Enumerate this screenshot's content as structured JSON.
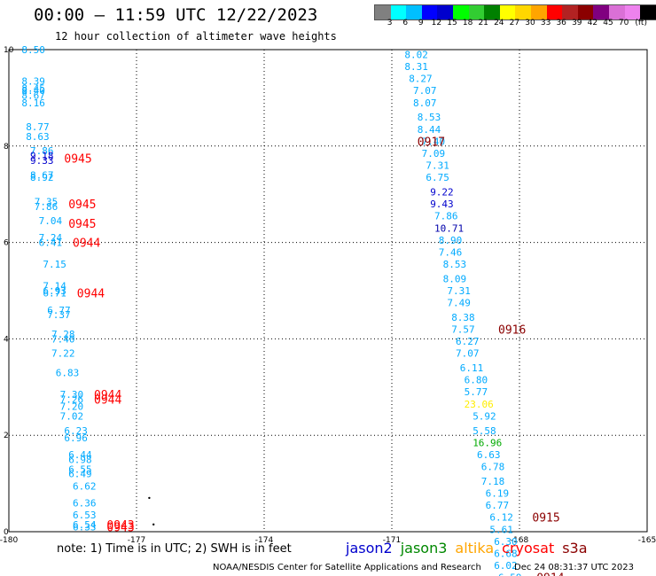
{
  "header": {
    "title": "00:00 – 11:59 UTC 12/22/2023",
    "subtitle": "12 hour collection of altimeter wave heights"
  },
  "colorbar": {
    "swatches": [
      "#808080",
      "#00ffff",
      "#00bfff",
      "#0000ff",
      "#0000cd",
      "#00ff00",
      "#32cd32",
      "#008000",
      "#ffff00",
      "#ffd700",
      "#ffa500",
      "#ff0000",
      "#b22222",
      "#8b0000",
      "#800080",
      "#da70d6",
      "#ee82ee",
      "#000000"
    ],
    "labels": [
      "3",
      "6",
      "9",
      "12",
      "15",
      "18",
      "21",
      "24",
      "27",
      "30",
      "33",
      "36",
      "39",
      "42",
      "45",
      "70",
      "(ft)"
    ]
  },
  "chart_data": {
    "type": "scatter",
    "title": "12 hour collection of altimeter wave heights",
    "xlim": [
      -180,
      -165
    ],
    "ylim": [
      0,
      10
    ],
    "x_ticks": [
      "-180",
      "-177",
      "-174",
      "-171",
      "-168",
      "-165"
    ],
    "x_tick_values": [
      -180,
      -177,
      -174,
      -171,
      -168,
      -165
    ],
    "y_ticks": [
      "0",
      "2",
      "4",
      "6",
      "8",
      "10"
    ],
    "y_tick_values": [
      0,
      2,
      4,
      6,
      8,
      10
    ],
    "grid": true,
    "point_labels": [
      {
        "x": -179.7,
        "y": 10.0,
        "text": "8.50",
        "color": "#00aaff"
      },
      {
        "x": -179.7,
        "y": 9.35,
        "text": "8.39",
        "color": "#00aaff"
      },
      {
        "x": -179.7,
        "y": 9.2,
        "text": "8.45",
        "color": "#00aaff"
      },
      {
        "x": -179.7,
        "y": 9.15,
        "text": "8.40",
        "color": "#00aaff"
      },
      {
        "x": -179.7,
        "y": 9.05,
        "text": "8.67",
        "color": "#00aaff"
      },
      {
        "x": -179.7,
        "y": 8.9,
        "text": "8.16",
        "color": "#00aaff"
      },
      {
        "x": -179.6,
        "y": 8.4,
        "text": "8.77",
        "color": "#00aaff"
      },
      {
        "x": -179.6,
        "y": 8.2,
        "text": "8.63",
        "color": "#00aaff"
      },
      {
        "x": -179.5,
        "y": 7.9,
        "text": "7.86",
        "color": "#00aaff"
      },
      {
        "x": -179.5,
        "y": 7.8,
        "text": "9.18",
        "color": "#0000cd"
      },
      {
        "x": -179.5,
        "y": 7.7,
        "text": "9.33",
        "color": "#0000cd"
      },
      {
        "x": -179.5,
        "y": 7.4,
        "text": "8.67",
        "color": "#00aaff"
      },
      {
        "x": -179.5,
        "y": 7.35,
        "text": "8.92",
        "color": "#00aaff"
      },
      {
        "x": -179.4,
        "y": 6.85,
        "text": "7.35",
        "color": "#00aaff"
      },
      {
        "x": -179.4,
        "y": 6.75,
        "text": "7.86",
        "color": "#00aaff"
      },
      {
        "x": -179.3,
        "y": 6.45,
        "text": "7.04",
        "color": "#00aaff"
      },
      {
        "x": -179.3,
        "y": 6.1,
        "text": "7.24",
        "color": "#00aaff"
      },
      {
        "x": -179.3,
        "y": 6.0,
        "text": "6.41",
        "color": "#00aaff"
      },
      {
        "x": -179.2,
        "y": 5.55,
        "text": "7.15",
        "color": "#00aaff"
      },
      {
        "x": -179.2,
        "y": 5.1,
        "text": "7.14",
        "color": "#00aaff"
      },
      {
        "x": -179.2,
        "y": 5.0,
        "text": "6.93",
        "color": "#00aaff"
      },
      {
        "x": -179.2,
        "y": 4.95,
        "text": "6.71",
        "color": "#00aaff"
      },
      {
        "x": -179.1,
        "y": 4.6,
        "text": "6.77",
        "color": "#00aaff"
      },
      {
        "x": -179.1,
        "y": 4.5,
        "text": "7.37",
        "color": "#00aaff"
      },
      {
        "x": -179.0,
        "y": 4.1,
        "text": "7.28",
        "color": "#00aaff"
      },
      {
        "x": -179.0,
        "y": 4.0,
        "text": "7.40",
        "color": "#00aaff"
      },
      {
        "x": -179.0,
        "y": 3.7,
        "text": "7.22",
        "color": "#00aaff"
      },
      {
        "x": -178.9,
        "y": 3.3,
        "text": "6.83",
        "color": "#00aaff"
      },
      {
        "x": -178.8,
        "y": 2.85,
        "text": "7.30",
        "color": "#00aaff"
      },
      {
        "x": -178.8,
        "y": 2.75,
        "text": "7.26",
        "color": "#00aaff"
      },
      {
        "x": -178.8,
        "y": 2.6,
        "text": "7.20",
        "color": "#00aaff"
      },
      {
        "x": -178.8,
        "y": 2.4,
        "text": "7.02",
        "color": "#00aaff"
      },
      {
        "x": -178.7,
        "y": 2.1,
        "text": "6.23",
        "color": "#00aaff"
      },
      {
        "x": -178.7,
        "y": 1.95,
        "text": "6.96",
        "color": "#00aaff"
      },
      {
        "x": -178.6,
        "y": 1.6,
        "text": "6.44",
        "color": "#00aaff"
      },
      {
        "x": -178.6,
        "y": 1.5,
        "text": "6.98",
        "color": "#00aaff"
      },
      {
        "x": -178.6,
        "y": 1.3,
        "text": "6.55",
        "color": "#00aaff"
      },
      {
        "x": -178.6,
        "y": 1.2,
        "text": "6.49",
        "color": "#00aaff"
      },
      {
        "x": -178.5,
        "y": 0.95,
        "text": "6.62",
        "color": "#00aaff"
      },
      {
        "x": -178.5,
        "y": 0.6,
        "text": "6.36",
        "color": "#00aaff"
      },
      {
        "x": -178.5,
        "y": 0.35,
        "text": "6.53",
        "color": "#00aaff"
      },
      {
        "x": -178.5,
        "y": 0.15,
        "text": "6.54",
        "color": "#00aaff"
      },
      {
        "x": -178.5,
        "y": 0.1,
        "text": "6.33",
        "color": "#00aaff"
      },
      {
        "x": -170.7,
        "y": 9.9,
        "text": "8.02",
        "color": "#00aaff"
      },
      {
        "x": -170.7,
        "y": 9.65,
        "text": "8.31",
        "color": "#00aaff"
      },
      {
        "x": -170.6,
        "y": 9.4,
        "text": "8.27",
        "color": "#00aaff"
      },
      {
        "x": -170.5,
        "y": 9.15,
        "text": "7.07",
        "color": "#00aaff"
      },
      {
        "x": -170.5,
        "y": 8.9,
        "text": "8.07",
        "color": "#00aaff"
      },
      {
        "x": -170.4,
        "y": 8.6,
        "text": "8.53",
        "color": "#00aaff"
      },
      {
        "x": -170.4,
        "y": 8.35,
        "text": "8.44",
        "color": "#00aaff"
      },
      {
        "x": -170.3,
        "y": 8.1,
        "text": "7.40",
        "color": "#00aaff"
      },
      {
        "x": -170.3,
        "y": 7.85,
        "text": "7.09",
        "color": "#00aaff"
      },
      {
        "x": -170.2,
        "y": 7.6,
        "text": "7.31",
        "color": "#00aaff"
      },
      {
        "x": -170.2,
        "y": 7.35,
        "text": "6.75",
        "color": "#00aaff"
      },
      {
        "x": -170.1,
        "y": 7.05,
        "text": "9.22",
        "color": "#0000cd"
      },
      {
        "x": -170.1,
        "y": 6.8,
        "text": "9.43",
        "color": "#0000cd"
      },
      {
        "x": -170.0,
        "y": 6.55,
        "text": "7.86",
        "color": "#00aaff"
      },
      {
        "x": -170.0,
        "y": 6.3,
        "text": "10.71",
        "color": "#0000aa"
      },
      {
        "x": -169.9,
        "y": 6.05,
        "text": "8.90",
        "color": "#00aaff"
      },
      {
        "x": -169.9,
        "y": 5.8,
        "text": "7.46",
        "color": "#00aaff"
      },
      {
        "x": -169.8,
        "y": 5.55,
        "text": "8.53",
        "color": "#00aaff"
      },
      {
        "x": -169.8,
        "y": 5.25,
        "text": "8.09",
        "color": "#00aaff"
      },
      {
        "x": -169.7,
        "y": 5.0,
        "text": "7.31",
        "color": "#00aaff"
      },
      {
        "x": -169.7,
        "y": 4.75,
        "text": "7.49",
        "color": "#00aaff"
      },
      {
        "x": -169.6,
        "y": 4.45,
        "text": "8.38",
        "color": "#00aaff"
      },
      {
        "x": -169.6,
        "y": 4.2,
        "text": "7.57",
        "color": "#00aaff"
      },
      {
        "x": -169.5,
        "y": 3.95,
        "text": "6.27",
        "color": "#00aaff"
      },
      {
        "x": -169.5,
        "y": 3.7,
        "text": "7.07",
        "color": "#00aaff"
      },
      {
        "x": -169.4,
        "y": 3.4,
        "text": "6.11",
        "color": "#00aaff"
      },
      {
        "x": -169.3,
        "y": 3.15,
        "text": "6.80",
        "color": "#00aaff"
      },
      {
        "x": -169.3,
        "y": 2.9,
        "text": "5.77",
        "color": "#00aaff"
      },
      {
        "x": -169.3,
        "y": 2.65,
        "text": "23.06",
        "color": "#ffee00"
      },
      {
        "x": -169.1,
        "y": 2.4,
        "text": "5.92",
        "color": "#00aaff"
      },
      {
        "x": -169.1,
        "y": 2.1,
        "text": "5.58",
        "color": "#00aaff"
      },
      {
        "x": -169.1,
        "y": 1.85,
        "text": "16.96",
        "color": "#00aa00"
      },
      {
        "x": -169.0,
        "y": 1.6,
        "text": "6.63",
        "color": "#00aaff"
      },
      {
        "x": -168.9,
        "y": 1.35,
        "text": "6.78",
        "color": "#00aaff"
      },
      {
        "x": -168.9,
        "y": 1.05,
        "text": "7.18",
        "color": "#00aaff"
      },
      {
        "x": -168.8,
        "y": 0.8,
        "text": "6.19",
        "color": "#00aaff"
      },
      {
        "x": -168.8,
        "y": 0.55,
        "text": "6.77",
        "color": "#00aaff"
      },
      {
        "x": -168.7,
        "y": 0.3,
        "text": "6.12",
        "color": "#00aaff"
      },
      {
        "x": -168.7,
        "y": 0.05,
        "text": "5.61",
        "color": "#00aaff"
      },
      {
        "x": -168.6,
        "y": -0.2,
        "text": "6.30",
        "color": "#00aaff"
      },
      {
        "x": -168.6,
        "y": -0.45,
        "text": "6.68",
        "color": "#00aaff"
      },
      {
        "x": -168.6,
        "y": -0.7,
        "text": "6.02",
        "color": "#00aaff"
      },
      {
        "x": -168.5,
        "y": -0.95,
        "text": "6.59",
        "color": "#00aaff"
      }
    ],
    "time_labels": [
      {
        "x": -178.7,
        "y": 7.75,
        "text": "0945",
        "color": "#ff0000"
      },
      {
        "x": -178.6,
        "y": 6.8,
        "text": "0945",
        "color": "#ff0000"
      },
      {
        "x": -178.6,
        "y": 6.4,
        "text": "0945",
        "color": "#ff0000"
      },
      {
        "x": -178.5,
        "y": 6.0,
        "text": "0944",
        "color": "#ff0000"
      },
      {
        "x": -178.4,
        "y": 4.95,
        "text": "0944",
        "color": "#ff0000"
      },
      {
        "x": -178.0,
        "y": 2.85,
        "text": "0944",
        "color": "#ff0000"
      },
      {
        "x": -178.0,
        "y": 2.75,
        "text": "0944",
        "color": "#ff0000"
      },
      {
        "x": -177.7,
        "y": 0.15,
        "text": "0943",
        "color": "#ff0000"
      },
      {
        "x": -177.7,
        "y": 0.1,
        "text": "0943",
        "color": "#ff0000"
      },
      {
        "x": -170.4,
        "y": 8.1,
        "text": "0917",
        "color": "#8b0000"
      },
      {
        "x": -168.5,
        "y": 4.2,
        "text": "0916",
        "color": "#8b0000"
      },
      {
        "x": -167.7,
        "y": 0.3,
        "text": "0915",
        "color": "#8b0000"
      },
      {
        "x": -167.6,
        "y": -0.95,
        "text": "0914",
        "color": "#8b0000"
      }
    ],
    "dots": [
      {
        "x": -176.7,
        "y": 0.7
      },
      {
        "x": -176.6,
        "y": 0.15
      }
    ]
  },
  "footer": {
    "note": "note: 1) Time is in UTC; 2) SWH is in feet",
    "satellites": [
      {
        "name": "jason2",
        "color": "#0000cd"
      },
      {
        "name": "jason3",
        "color": "#008800"
      },
      {
        "name": "altika",
        "color": "#ffa500"
      },
      {
        "name": "cryosat",
        "color": "#ff0000"
      },
      {
        "name": "s3a",
        "color": "#8b0000"
      }
    ],
    "credit": "NOAA/NESDIS Center for Satellite Applications and Research",
    "timestamp": "Dec 24 08:31:37 UTC 2023"
  }
}
